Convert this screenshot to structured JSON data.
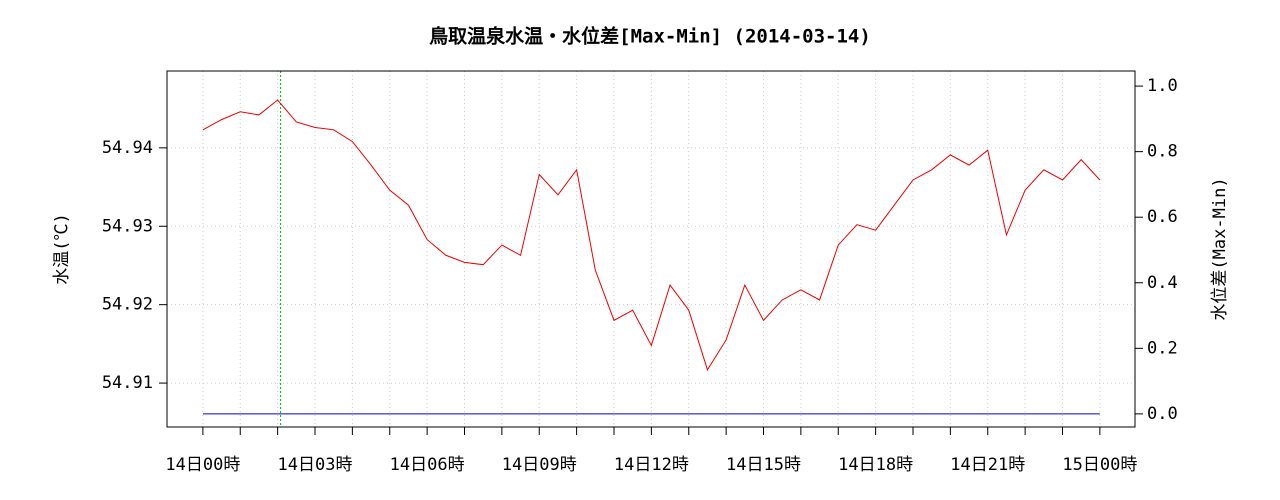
{
  "chart_data": {
    "type": "line",
    "title": "鳥取温泉水温・水位差[Max-Min] (2014-03-14)",
    "ylabel": "水温(℃)",
    "y2label": "水位差(Max-Min)",
    "x": [
      0,
      0.5,
      1,
      1.5,
      2,
      2.5,
      3,
      3.5,
      4,
      4.5,
      5,
      5.5,
      6,
      6.5,
      7,
      7.5,
      8,
      8.5,
      9,
      9.5,
      10,
      10.5,
      11,
      11.5,
      12,
      12.5,
      13,
      13.5,
      14,
      14.5,
      15,
      15.5,
      16,
      16.5,
      17,
      17.5,
      18,
      18.5,
      19,
      19.5,
      20,
      20.5,
      21,
      21.5,
      22,
      22.5,
      23,
      23.5,
      24
    ],
    "series": [
      {
        "name": "水温",
        "color": "#ee0000",
        "axis": "y",
        "values": [
          54.9423,
          54.9436,
          54.9446,
          54.9442,
          54.9461,
          54.9433,
          54.9426,
          54.9423,
          54.9408,
          54.9378,
          54.9346,
          54.9327,
          54.9283,
          54.9263,
          54.9254,
          54.9251,
          54.9276,
          54.9263,
          54.9366,
          54.934,
          54.9372,
          54.9244,
          54.918,
          54.9193,
          54.9148,
          54.9225,
          54.9193,
          54.9117,
          54.9155,
          54.9225,
          54.918,
          54.9206,
          54.9219,
          54.9206,
          54.9276,
          54.9302,
          54.9295,
          54.9327,
          54.9359,
          54.9372,
          54.9391,
          54.9378,
          54.9397,
          54.9289,
          54.9346,
          54.9372,
          54.9359,
          54.9385,
          54.9359
        ]
      },
      {
        "name": "水位差",
        "color": "#0000cc",
        "axis": "y2",
        "values": [
          0,
          0,
          0,
          0,
          0,
          0,
          0,
          0,
          0,
          0,
          0,
          0,
          0,
          0,
          0,
          0,
          0,
          0,
          0,
          0,
          0,
          0,
          0,
          0,
          0,
          0,
          0,
          0,
          0,
          0,
          0,
          0,
          0,
          0,
          0,
          0,
          0,
          0,
          0,
          0,
          0,
          0,
          0,
          0,
          0,
          0,
          0,
          0,
          0
        ]
      }
    ],
    "marker_x": 2.08,
    "marker_color": "#00aa00",
    "xlim": [
      -0.96,
      24.94
    ],
    "xticks": [
      {
        "value": 0,
        "label": "14日00時"
      },
      {
        "value": 3,
        "label": "14日03時"
      },
      {
        "value": 6,
        "label": "14日06時"
      },
      {
        "value": 9,
        "label": "14日09時"
      },
      {
        "value": 12,
        "label": "14日12時"
      },
      {
        "value": 15,
        "label": "14日15時"
      },
      {
        "value": 18,
        "label": "14日18時"
      },
      {
        "value": 21,
        "label": "14日21時"
      },
      {
        "value": 24,
        "label": "15日00時"
      }
    ],
    "minor_xticks": [
      1,
      2,
      4,
      5,
      7,
      8,
      10,
      11,
      13,
      14,
      16,
      17,
      19,
      20,
      22,
      23
    ],
    "ylim": [
      54.9044,
      54.9498
    ],
    "yticks": [
      54.91,
      54.92,
      54.93,
      54.94
    ],
    "y2lim": [
      -0.04,
      1.046
    ],
    "y2ticks": [
      {
        "value": 0,
        "label": "0.0"
      },
      {
        "value": 0.2,
        "label": "0.2"
      },
      {
        "value": 0.4,
        "label": "0.4"
      },
      {
        "value": 0.6,
        "label": "0.6"
      },
      {
        "value": 0.8,
        "label": "0.8"
      },
      {
        "value": 1,
        "label": "1.0"
      }
    ],
    "grid": true
  }
}
